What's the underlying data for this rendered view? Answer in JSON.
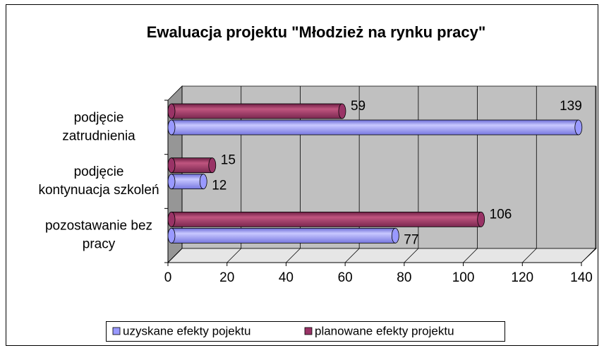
{
  "chart_data": {
    "type": "bar3d-horizontal",
    "title": "Ewaluacja projektu \"Młodzież na rynku pracy\"",
    "categories": [
      [
        "podjęcie",
        "zatrudnienia"
      ],
      [
        "podjęcie",
        "kontynuacja szkoleń"
      ],
      [
        "pozostawanie bez",
        "pracy"
      ]
    ],
    "series": [
      {
        "name": "uzyskane efekty pojektu",
        "color": "#9999ff",
        "values": [
          139,
          12,
          77
        ]
      },
      {
        "name": "planowane efekty projektu",
        "color": "#993366",
        "values": [
          59,
          15,
          106
        ]
      }
    ],
    "xlim": [
      0,
      140
    ],
    "xticks": [
      0,
      20,
      40,
      60,
      80,
      100,
      120,
      140
    ],
    "grid": true,
    "legend": "bottom"
  }
}
